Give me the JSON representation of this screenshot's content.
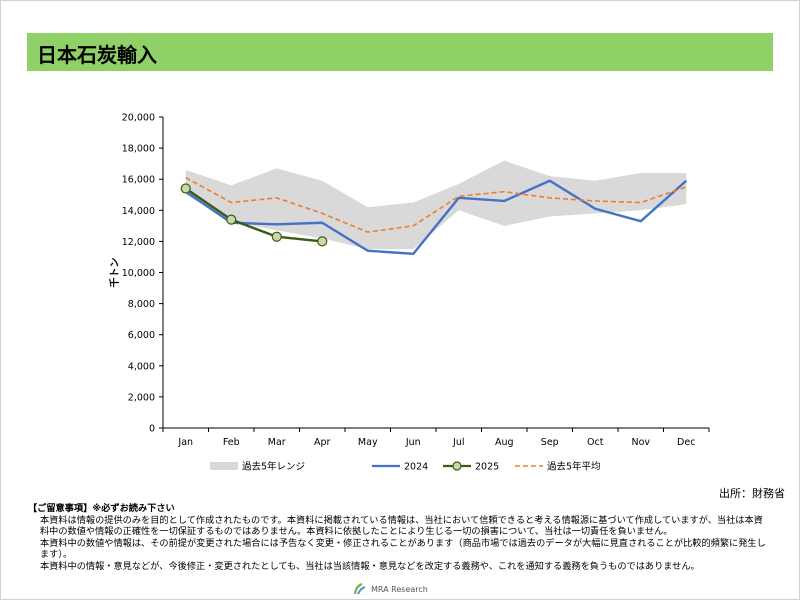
{
  "title": "日本石炭輸入",
  "source": "出所：財務省",
  "notes": {
    "heading": "【ご留意事項】※必ずお読み下さい",
    "lines": [
      "本資料は情報の提供のみを目的として作成されたものです。本資料に掲載されている情報は、当社において信頼できると考える情報源に基づいて作成していますが、当社は本資料中の数値や情報の正確性を一切保証するものではありません。本資料に依拠したことにより生じる一切の損害について、当社は一切責任を負いません。",
      "本資料中の数値や情報は、その前提が変更された場合には予告なく変更・修正されることがあります（商品市場では過去のデータが大幅に見直されることが比較的頻繁に発生します）。",
      "本資料中の情報・意見などが、今後修正・変更されたとしても、当社は当該情報・意見などを改定する義務や、これを通知する義務を負うものではありません。"
    ]
  },
  "footer": {
    "brand": "MRA Research",
    "icon": "mra-logo-icon"
  },
  "chart_data": {
    "type": "line",
    "categories": [
      "Jan",
      "Feb",
      "Mar",
      "Apr",
      "May",
      "Jun",
      "Jul",
      "Aug",
      "Sep",
      "Oct",
      "Nov",
      "Dec"
    ],
    "ylabel": "千トン",
    "ylim": [
      0,
      20000
    ],
    "yticks": [
      0,
      2000,
      4000,
      6000,
      8000,
      10000,
      12000,
      14000,
      16000,
      18000,
      20000
    ],
    "ytick_labels": [
      "0",
      "2,000",
      "4,000",
      "6,000",
      "8,000",
      "10,000",
      "12,000",
      "14,000",
      "16,000",
      "18,000",
      "20,000"
    ],
    "grid": false,
    "legend_position": "bottom",
    "range_band": {
      "name": "過去5年レンジ",
      "color": "#d9d9d9",
      "low": [
        15000,
        13300,
        12700,
        12200,
        11500,
        11500,
        14000,
        13000,
        13600,
        13800,
        14000,
        14400
      ],
      "high": [
        16600,
        15600,
        16700,
        15900,
        14200,
        14500,
        15700,
        17200,
        16200,
        15900,
        16400,
        16400
      ]
    },
    "series": [
      {
        "name": "2024",
        "color": "#4472c4",
        "values": [
          15200,
          13200,
          13100,
          13200,
          11400,
          11200,
          14800,
          14600,
          15900,
          14100,
          13300,
          15900
        ]
      },
      {
        "name": "2025",
        "color": "#3d5a14",
        "marker_fill": "#c9d8a8",
        "values": [
          15400,
          13400,
          12300,
          12000,
          null,
          null,
          null,
          null,
          null,
          null,
          null,
          null
        ]
      },
      {
        "name": "過去5年平均",
        "color": "#ed7d31",
        "dashed": true,
        "values": [
          16100,
          14500,
          14800,
          13800,
          12600,
          13000,
          14900,
          15200,
          14800,
          14600,
          14500,
          15500
        ]
      }
    ]
  }
}
